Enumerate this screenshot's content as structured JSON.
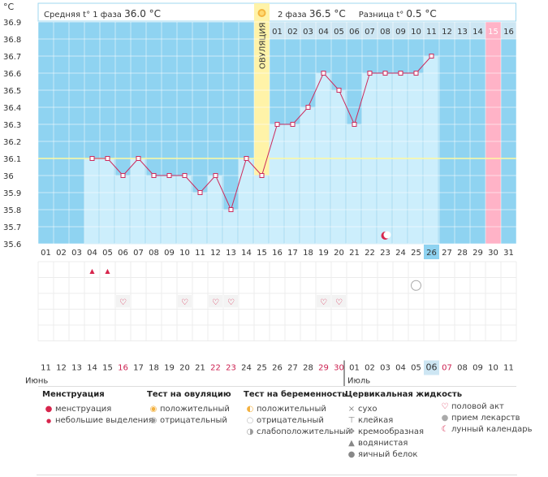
{
  "chart_data": {
    "type": "bar",
    "title": "",
    "ylabel": "°C",
    "ylim": [
      35.6,
      36.9
    ],
    "y_ticks": [
      "36.9",
      "36.8",
      "36.7",
      "36.6",
      "36.5",
      "36.4",
      "36.3",
      "36.2",
      "36.1",
      "36",
      "35.9",
      "35.8",
      "35.7",
      "35.6"
    ],
    "cycle_days": [
      "01",
      "02",
      "03",
      "04",
      "05",
      "06",
      "07",
      "08",
      "09",
      "10",
      "11",
      "12",
      "13",
      "14",
      "15",
      "16",
      "17",
      "18",
      "19",
      "20",
      "21",
      "22",
      "23",
      "24",
      "25",
      "26",
      "27",
      "28",
      "29",
      "30",
      "31"
    ],
    "phase2_days": [
      "01",
      "02",
      "03",
      "04",
      "05",
      "06",
      "07",
      "08",
      "09",
      "10",
      "11",
      "12",
      "13",
      "14",
      "15",
      "16"
    ],
    "temperatures": [
      null,
      null,
      null,
      36.1,
      36.1,
      36.0,
      36.1,
      36.0,
      36.0,
      36.0,
      35.9,
      36.0,
      35.8,
      36.1,
      36.0,
      36.3,
      36.3,
      36.4,
      36.6,
      36.5,
      36.3,
      36.6,
      36.6,
      36.6,
      36.6,
      36.7,
      null,
      null,
      null,
      null,
      null
    ],
    "ovulation_day": 15,
    "ovulation_label": "ОВУЛЯЦИЯ",
    "today_day": 26,
    "expected_period_day": 30,
    "reference_line": 36.1,
    "calendar_days": [
      "11",
      "12",
      "13",
      "14",
      "15",
      "16",
      "17",
      "18",
      "19",
      "20",
      "21",
      "22",
      "23",
      "24",
      "25",
      "26",
      "27",
      "28",
      "29",
      "30",
      "01",
      "02",
      "03",
      "04",
      "05",
      "06",
      "07",
      "08",
      "09",
      "10",
      "11"
    ],
    "calendar_red": [
      16,
      22,
      23,
      29,
      30,
      7
    ],
    "month_june": "Июнь",
    "month_july": "Июль",
    "menstruation_days": [
      4,
      5
    ],
    "intercourse_days": [
      6,
      10,
      12,
      13,
      19,
      20
    ],
    "pregnancy_test_day": 25,
    "lunar_day": 23
  },
  "header": {
    "phase1_label": "Средняя t° 1 фаза",
    "phase1_value": "36.0 °C",
    "phase2_label": "2 фаза",
    "phase2_value": "36.5 °C",
    "diff_label": "Разница t°",
    "diff_value": "0.5 °C"
  },
  "legend": {
    "menstruation": {
      "title": "Менструация",
      "items": [
        "менструация",
        "небольшие выделения"
      ]
    },
    "ovulation_test": {
      "title": "Тест на овуляцию",
      "items": [
        "положительный",
        "отрицательный"
      ]
    },
    "pregnancy_test": {
      "title": "Тест на беременность",
      "items": [
        "положительный",
        "отрицательный",
        "слабоположительный"
      ]
    },
    "cervical": {
      "title": "Цервикальная жидкость",
      "items": [
        "сухо",
        "клейкая",
        "кремообразная",
        "водянистая",
        "яичный белок"
      ]
    },
    "other": {
      "items": [
        "половой акт",
        "прием лекарств",
        "лунный календарь"
      ]
    }
  },
  "colors": {
    "bg_blue": "#8fd3f1",
    "bar": "#cceefc",
    "line": "#cc2a5c",
    "ovulation": "#fff3a8",
    "period": "#ffb3c7",
    "today": "#8fd3f1"
  }
}
